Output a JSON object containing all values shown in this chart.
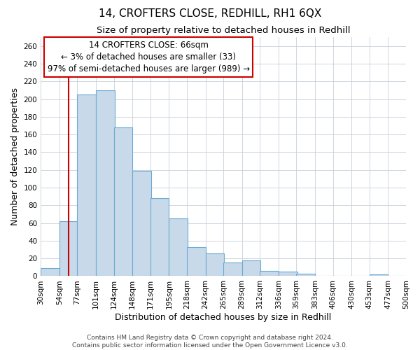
{
  "title": "14, CROFTERS CLOSE, REDHILL, RH1 6QX",
  "subtitle": "Size of property relative to detached houses in Redhill",
  "xlabel": "Distribution of detached houses by size in Redhill",
  "ylabel": "Number of detached properties",
  "bin_labels": [
    "30sqm",
    "54sqm",
    "77sqm",
    "101sqm",
    "124sqm",
    "148sqm",
    "171sqm",
    "195sqm",
    "218sqm",
    "242sqm",
    "265sqm",
    "289sqm",
    "312sqm",
    "336sqm",
    "359sqm",
    "383sqm",
    "406sqm",
    "430sqm",
    "453sqm",
    "477sqm",
    "500sqm"
  ],
  "bar_heights": [
    9,
    62,
    205,
    210,
    168,
    119,
    88,
    65,
    33,
    26,
    15,
    18,
    6,
    5,
    3,
    0,
    0,
    0,
    2,
    0,
    0
  ],
  "bar_color": "#c8d9ea",
  "bar_edgecolor": "#6aaad4",
  "ylim": [
    0,
    270
  ],
  "yticks": [
    0,
    20,
    40,
    60,
    80,
    100,
    120,
    140,
    160,
    180,
    200,
    220,
    240,
    260
  ],
  "red_line_color": "#cc0000",
  "annotation_title": "14 CROFTERS CLOSE: 66sqm",
  "annotation_line1": "← 3% of detached houses are smaller (33)",
  "annotation_line2": "97% of semi-detached houses are larger (989) →",
  "annotation_box_color": "#ffffff",
  "annotation_box_edgecolor": "#cc0000",
  "footer_line1": "Contains HM Land Registry data © Crown copyright and database right 2024.",
  "footer_line2": "Contains public sector information licensed under the Open Government Licence v3.0.",
  "background_color": "#ffffff",
  "grid_color": "#c8d0d8",
  "title_fontsize": 11,
  "subtitle_fontsize": 9.5,
  "axis_label_fontsize": 9,
  "tick_fontsize": 7.5,
  "annotation_fontsize": 8.5,
  "footer_fontsize": 6.5,
  "red_line_xsqm": 66
}
